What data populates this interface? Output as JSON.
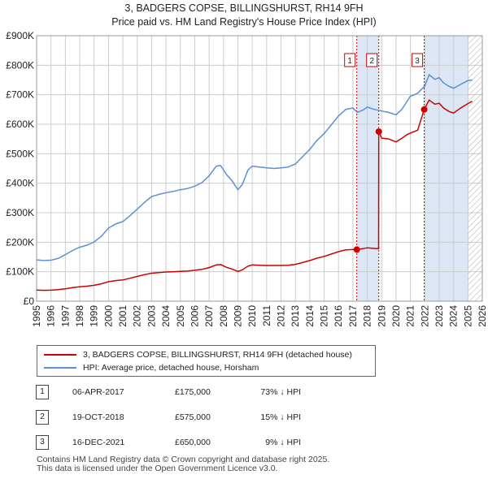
{
  "title_line1": "3, BADGERS COPSE, BILLINGSHURST, RH14 9FH",
  "title_line2": "Price paid vs. HM Land Registry's House Price Index (HPI)",
  "colors": {
    "hpi": "#5b8fd2",
    "price": "#cc0000",
    "shade": "#dce6f5",
    "grid": "#cccccc"
  },
  "chart_data": {
    "type": "line",
    "xlim": [
      1995,
      2026
    ],
    "ylim": [
      0,
      900000
    ],
    "x_ticks": [
      1995,
      1996,
      1997,
      1998,
      1999,
      2000,
      2001,
      2002,
      2003,
      2004,
      2005,
      2006,
      2007,
      2008,
      2009,
      2010,
      2011,
      2012,
      2013,
      2014,
      2015,
      2016,
      2017,
      2018,
      2019,
      2020,
      2021,
      2022,
      2023,
      2024,
      2025,
      2026
    ],
    "y_ticks": [
      {
        "value": 0,
        "label": "£0"
      },
      {
        "value": 100000,
        "label": "£100K"
      },
      {
        "value": 200000,
        "label": "£200K"
      },
      {
        "value": 300000,
        "label": "£300K"
      },
      {
        "value": 400000,
        "label": "£400K"
      },
      {
        "value": 500000,
        "label": "£500K"
      },
      {
        "value": 600000,
        "label": "£600K"
      },
      {
        "value": 700000,
        "label": "£700K"
      },
      {
        "value": 800000,
        "label": "£800K"
      },
      {
        "value": 900000,
        "label": "£900K"
      }
    ],
    "hpi_series": {
      "name": "HPI: Average price, detached house, Horsham",
      "x": [
        1995.0,
        1995.5,
        1996.0,
        1996.5,
        1997.0,
        1997.5,
        1998.0,
        1998.5,
        1999.0,
        1999.5,
        2000.0,
        2000.5,
        2001.0,
        2001.5,
        2002.0,
        2002.5,
        2003.0,
        2003.5,
        2004.0,
        2004.5,
        2005.0,
        2005.5,
        2006.0,
        2006.5,
        2007.0,
        2007.5,
        2007.8,
        2008.2,
        2008.6,
        2009.0,
        2009.3,
        2009.7,
        2010.0,
        2010.5,
        2011.0,
        2011.5,
        2012.0,
        2012.5,
        2013.0,
        2013.5,
        2014.0,
        2014.5,
        2015.0,
        2015.5,
        2016.0,
        2016.5,
        2017.0,
        2017.3,
        2017.7,
        2018.0,
        2018.5,
        2019.0,
        2019.5,
        2020.0,
        2020.4,
        2020.8,
        2021.0,
        2021.5,
        2022.0,
        2022.3,
        2022.7,
        2023.0,
        2023.3,
        2023.7,
        2024.0,
        2024.5,
        2025.0,
        2025.3
      ],
      "y": [
        140000,
        138000,
        139000,
        145000,
        158000,
        172000,
        183000,
        190000,
        201000,
        220000,
        248000,
        262000,
        270000,
        290000,
        312000,
        335000,
        355000,
        362000,
        368000,
        372000,
        378000,
        382000,
        390000,
        402000,
        425000,
        458000,
        460000,
        430000,
        408000,
        378000,
        395000,
        445000,
        458000,
        455000,
        452000,
        450000,
        452000,
        455000,
        465000,
        490000,
        515000,
        545000,
        568000,
        598000,
        628000,
        650000,
        655000,
        640000,
        648000,
        658000,
        650000,
        645000,
        640000,
        632000,
        650000,
        680000,
        695000,
        705000,
        730000,
        768000,
        752000,
        758000,
        740000,
        728000,
        722000,
        735000,
        748000,
        750000
      ]
    },
    "price_series": {
      "name": "3, BADGERS COPSE, BILLINGSHURST, RH14 9FH (detached house)",
      "x": [
        1995.0,
        1995.5,
        1996.0,
        1996.5,
        1997.0,
        1997.5,
        1998.0,
        1998.5,
        1999.0,
        1999.5,
        2000.0,
        2000.5,
        2001.0,
        2001.5,
        2002.0,
        2002.5,
        2003.0,
        2003.5,
        2004.0,
        2004.5,
        2005.0,
        2005.5,
        2006.0,
        2006.5,
        2007.0,
        2007.5,
        2007.8,
        2008.2,
        2008.6,
        2009.0,
        2009.3,
        2009.7,
        2010.0,
        2010.5,
        2011.0,
        2011.5,
        2012.0,
        2012.5,
        2013.0,
        2013.5,
        2014.0,
        2014.5,
        2015.0,
        2015.5,
        2016.0,
        2016.5,
        2017.0,
        2017.27,
        2017.7,
        2018.0,
        2018.5,
        2018.79,
        2018.8,
        2019.0,
        2019.5,
        2020.0,
        2020.4,
        2020.8,
        2021.0,
        2021.5,
        2021.96,
        2022.3,
        2022.7,
        2023.0,
        2023.3,
        2023.7,
        2024.0,
        2024.5,
        2025.0,
        2025.3
      ],
      "y": [
        38000,
        37000,
        37500,
        39000,
        42000,
        46000,
        49000,
        51000,
        54000,
        59000,
        66000,
        70000,
        72000,
        78000,
        84000,
        90000,
        95000,
        97000,
        99000,
        100000,
        101000,
        102000,
        105000,
        108000,
        114000,
        123000,
        124000,
        115000,
        109000,
        101000,
        106000,
        119000,
        123000,
        122000,
        121000,
        121000,
        121000,
        122000,
        125000,
        131000,
        138000,
        146000,
        152000,
        160000,
        168000,
        174000,
        175000,
        175000,
        178000,
        181000,
        179000,
        178000,
        575000,
        553000,
        550000,
        540000,
        552000,
        566000,
        570000,
        580000,
        650000,
        682000,
        668000,
        671000,
        655000,
        643000,
        638000,
        655000,
        670000,
        678000
      ]
    },
    "sales": [
      {
        "label": "1",
        "x": 2017.27,
        "y": 175000
      },
      {
        "label": "2",
        "x": 2018.8,
        "y": 575000
      },
      {
        "label": "3",
        "x": 2021.96,
        "y": 650000
      }
    ],
    "future_shade_start": 2025.0
  },
  "legend": {
    "price_label": "3, BADGERS COPSE, BILLINGSHURST, RH14 9FH (detached house)",
    "hpi_label": "HPI: Average price, detached house, Horsham"
  },
  "transactions": [
    {
      "num": "1",
      "date": "06-APR-2017",
      "price": "£175,000",
      "hpi": "73% ↓ HPI"
    },
    {
      "num": "2",
      "date": "19-OCT-2018",
      "price": "£575,000",
      "hpi": "15% ↓ HPI"
    },
    {
      "num": "3",
      "date": "16-DEC-2021",
      "price": "£650,000",
      "hpi": "9% ↓ HPI"
    }
  ],
  "footer_line1": "Contains HM Land Registry data © Crown copyright and database right 2025.",
  "footer_line2": "This data is licensed under the Open Government Licence v3.0."
}
